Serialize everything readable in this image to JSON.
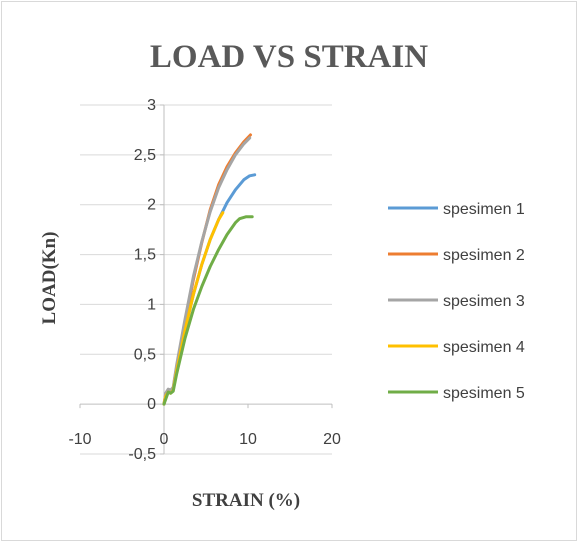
{
  "chart_data": {
    "type": "line",
    "title": "LOAD VS STRAIN",
    "xlabel": "STRAIN (%)",
    "ylabel": "LOAD(Kn)",
    "xlim": [
      -10,
      20
    ],
    "ylim": [
      -0.5,
      3
    ],
    "x_ticks": [
      "-10",
      "0",
      "10",
      "20"
    ],
    "y_ticks": [
      "-0,5",
      "0",
      "0,5",
      "1",
      "1,5",
      "2",
      "2,5",
      "3"
    ],
    "x_tick_values": [
      -10,
      0,
      10,
      20
    ],
    "y_tick_values": [
      -0.5,
      0,
      0.5,
      1,
      1.5,
      2,
      2.5,
      3
    ],
    "grid": "horizontal",
    "legend_position": "right",
    "series": [
      {
        "name": "spesimen 1",
        "color": "#5B9BD5",
        "x": [
          0,
          0.2,
          0.5,
          0.8,
          1.1,
          1.5,
          2.5,
          3.5,
          4.5,
          5.5,
          6.5,
          7.5,
          8.5,
          9.5,
          10.2,
          10.8
        ],
        "y": [
          0,
          0.1,
          0.14,
          0.13,
          0.15,
          0.35,
          0.75,
          1.1,
          1.4,
          1.65,
          1.85,
          2.02,
          2.15,
          2.25,
          2.29,
          2.3
        ]
      },
      {
        "name": "spesimen 2",
        "color": "#ED7D31",
        "x": [
          0,
          0.2,
          0.5,
          0.8,
          1.1,
          1.5,
          2.5,
          3.5,
          4.5,
          5.5,
          6.5,
          7.5,
          8.5,
          9.5,
          10.3
        ],
        "y": [
          0,
          0.1,
          0.14,
          0.13,
          0.16,
          0.37,
          0.82,
          1.25,
          1.62,
          1.95,
          2.2,
          2.38,
          2.52,
          2.63,
          2.7
        ]
      },
      {
        "name": "spesimen 3",
        "color": "#A5A5A5",
        "x": [
          0,
          0.2,
          0.5,
          0.8,
          1.1,
          1.5,
          2.5,
          3.5,
          4.5,
          5.5,
          6.5,
          7.5,
          8.5,
          9.5,
          10.2
        ],
        "y": [
          0,
          0.11,
          0.15,
          0.14,
          0.17,
          0.39,
          0.85,
          1.28,
          1.63,
          1.93,
          2.17,
          2.35,
          2.5,
          2.61,
          2.67
        ]
      },
      {
        "name": "spesimen 4",
        "color": "#FFC000",
        "x": [
          0,
          0.2,
          0.5,
          0.8,
          1.1,
          1.5,
          2.5,
          3.5,
          4.5,
          5.5,
          6.5,
          7.0
        ],
        "y": [
          0,
          0.08,
          0.12,
          0.11,
          0.14,
          0.33,
          0.74,
          1.1,
          1.4,
          1.65,
          1.85,
          1.92
        ]
      },
      {
        "name": "spesimen 5",
        "color": "#70AD47",
        "x": [
          0,
          0.2,
          0.5,
          0.8,
          1.1,
          1.5,
          2.5,
          3.5,
          4.5,
          5.5,
          6.5,
          7.5,
          8.5,
          9.0,
          9.8,
          10.5
        ],
        "y": [
          0,
          0.05,
          0.12,
          0.11,
          0.13,
          0.3,
          0.66,
          0.95,
          1.18,
          1.38,
          1.55,
          1.7,
          1.82,
          1.86,
          1.88,
          1.88
        ]
      }
    ]
  }
}
